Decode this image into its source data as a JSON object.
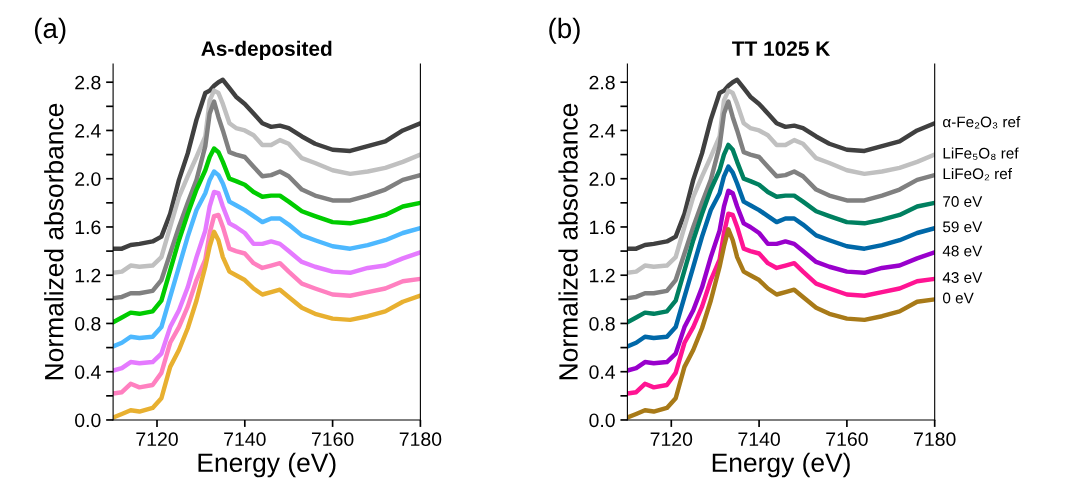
{
  "chart_data": [
    {
      "type": "line",
      "title": "As-deposited",
      "xlabel": "Energy (eV)",
      "ylabel": "Normalized absorbance",
      "annotations": [
        "(a)"
      ],
      "x": [
        7110,
        7112,
        7114,
        7116,
        7119,
        7121,
        7123,
        7125,
        7127,
        7129,
        7131,
        7132,
        7133,
        7134,
        7135,
        7136.5,
        7138,
        7140,
        7142,
        7144,
        7146,
        7148,
        7150,
        7153,
        7156,
        7160,
        7164,
        7168,
        7172,
        7176,
        7180
      ],
      "series": [
        {
          "color": "#404040",
          "values": [
            1.42,
            1.42,
            1.45,
            1.46,
            1.48,
            1.52,
            1.71,
            1.99,
            2.21,
            2.49,
            2.71,
            2.73,
            2.77,
            2.8,
            2.82,
            2.75,
            2.68,
            2.62,
            2.54,
            2.46,
            2.43,
            2.44,
            2.42,
            2.35,
            2.29,
            2.24,
            2.23,
            2.27,
            2.31,
            2.4,
            2.46
          ]
        },
        {
          "color": "#c0c0c0",
          "values": [
            1.22,
            1.23,
            1.28,
            1.27,
            1.28,
            1.35,
            1.6,
            1.85,
            2.02,
            2.18,
            2.35,
            2.65,
            2.73,
            2.71,
            2.62,
            2.46,
            2.42,
            2.4,
            2.36,
            2.28,
            2.28,
            2.32,
            2.29,
            2.17,
            2.13,
            2.07,
            2.04,
            2.06,
            2.09,
            2.14,
            2.2
          ]
        },
        {
          "color": "#808080",
          "values": [
            1.01,
            1.02,
            1.05,
            1.05,
            1.07,
            1.16,
            1.38,
            1.6,
            1.8,
            1.99,
            2.27,
            2.54,
            2.64,
            2.51,
            2.4,
            2.22,
            2.2,
            2.18,
            2.1,
            2.02,
            2.03,
            2.06,
            2.02,
            1.91,
            1.86,
            1.82,
            1.82,
            1.86,
            1.91,
            1.99,
            2.03
          ]
        },
        {
          "color": "#00cc00",
          "values": [
            0.81,
            0.85,
            0.89,
            0.88,
            0.9,
            0.99,
            1.24,
            1.49,
            1.71,
            1.91,
            2.07,
            2.18,
            2.25,
            2.22,
            2.14,
            2.0,
            1.98,
            1.95,
            1.89,
            1.85,
            1.86,
            1.86,
            1.81,
            1.73,
            1.69,
            1.64,
            1.63,
            1.66,
            1.7,
            1.77,
            1.8
          ]
        },
        {
          "color": "#4db8ff",
          "values": [
            0.61,
            0.64,
            0.69,
            0.68,
            0.69,
            0.77,
            1.02,
            1.27,
            1.52,
            1.74,
            1.88,
            1.99,
            2.06,
            2.03,
            1.96,
            1.81,
            1.78,
            1.74,
            1.69,
            1.64,
            1.67,
            1.67,
            1.62,
            1.53,
            1.49,
            1.44,
            1.42,
            1.45,
            1.49,
            1.55,
            1.59
          ]
        },
        {
          "color": "#e57aff",
          "values": [
            0.41,
            0.43,
            0.48,
            0.47,
            0.48,
            0.55,
            0.77,
            0.91,
            1.1,
            1.35,
            1.57,
            1.77,
            1.89,
            1.88,
            1.77,
            1.63,
            1.6,
            1.55,
            1.46,
            1.46,
            1.48,
            1.46,
            1.4,
            1.31,
            1.27,
            1.23,
            1.22,
            1.26,
            1.28,
            1.34,
            1.39
          ]
        },
        {
          "color": "#ff80c0",
          "values": [
            0.22,
            0.23,
            0.3,
            0.27,
            0.29,
            0.39,
            0.64,
            0.77,
            0.94,
            1.16,
            1.33,
            1.55,
            1.69,
            1.7,
            1.6,
            1.42,
            1.4,
            1.38,
            1.3,
            1.26,
            1.28,
            1.3,
            1.23,
            1.13,
            1.09,
            1.04,
            1.03,
            1.06,
            1.09,
            1.15,
            1.17
          ]
        },
        {
          "color": "#e8b030",
          "values": [
            0.02,
            0.05,
            0.08,
            0.07,
            0.1,
            0.18,
            0.44,
            0.58,
            0.76,
            0.99,
            1.27,
            1.44,
            1.56,
            1.49,
            1.35,
            1.23,
            1.2,
            1.16,
            1.09,
            1.04,
            1.06,
            1.08,
            1.02,
            0.93,
            0.88,
            0.84,
            0.83,
            0.86,
            0.9,
            0.98,
            1.03
          ]
        }
      ],
      "xlim": [
        7110,
        7180
      ],
      "ylim": [
        0,
        2.95
      ],
      "xticks": [
        7120,
        7140,
        7160,
        7180
      ],
      "yticks": [
        {
          "value": 0,
          "label": "0.0"
        },
        {
          "value": 0.2,
          "label": null
        },
        {
          "value": 0.4,
          "label": "0.4"
        },
        {
          "value": 0.6,
          "label": null
        },
        {
          "value": 0.8,
          "label": "0.8"
        },
        {
          "value": 1.0,
          "label": null
        },
        {
          "value": 1.2,
          "label": "1.2"
        },
        {
          "value": 1.4,
          "label": null
        },
        {
          "value": 1.6,
          "label": "1.6"
        },
        {
          "value": 1.8,
          "label": null
        },
        {
          "value": 2,
          "label": "2.0"
        },
        {
          "value": 2.2,
          "label": null
        },
        {
          "value": 2.4,
          "label": "2.4"
        },
        {
          "value": 2.6,
          "label": null
        },
        {
          "value": 2.8,
          "label": "2.8"
        }
      ],
      "grid": false,
      "legend": false
    },
    {
      "type": "line",
      "title": "TT 1025 K",
      "xlabel": "Energy (eV)",
      "ylabel": "Normalized absorbance",
      "annotations": [
        "(b)"
      ],
      "x": [
        7110,
        7112,
        7114,
        7116,
        7119,
        7121,
        7123,
        7125,
        7127,
        7129,
        7131,
        7132,
        7133,
        7134,
        7135,
        7136.5,
        7138,
        7140,
        7142,
        7144,
        7146,
        7148,
        7150,
        7153,
        7156,
        7160,
        7164,
        7168,
        7172,
        7176,
        7180
      ],
      "series": [
        {
          "name": "α-Fe₂O₃ ref",
          "color": "#404040",
          "values": [
            1.42,
            1.42,
            1.45,
            1.46,
            1.48,
            1.52,
            1.71,
            1.99,
            2.21,
            2.49,
            2.71,
            2.73,
            2.77,
            2.8,
            2.82,
            2.75,
            2.68,
            2.62,
            2.54,
            2.46,
            2.43,
            2.44,
            2.42,
            2.35,
            2.29,
            2.24,
            2.23,
            2.27,
            2.31,
            2.4,
            2.46
          ]
        },
        {
          "name": "LiFe₅O₈ ref",
          "color": "#c0c0c0",
          "values": [
            1.22,
            1.23,
            1.28,
            1.27,
            1.28,
            1.35,
            1.6,
            1.85,
            2.02,
            2.18,
            2.35,
            2.65,
            2.73,
            2.71,
            2.62,
            2.46,
            2.42,
            2.4,
            2.36,
            2.28,
            2.28,
            2.32,
            2.29,
            2.17,
            2.13,
            2.07,
            2.04,
            2.06,
            2.09,
            2.14,
            2.2
          ]
        },
        {
          "name": "LiFeO₂ ref",
          "color": "#808080",
          "values": [
            1.01,
            1.02,
            1.05,
            1.05,
            1.07,
            1.16,
            1.38,
            1.6,
            1.8,
            1.99,
            2.27,
            2.54,
            2.64,
            2.51,
            2.4,
            2.22,
            2.2,
            2.18,
            2.1,
            2.02,
            2.03,
            2.06,
            2.02,
            1.91,
            1.86,
            1.82,
            1.82,
            1.86,
            1.91,
            1.99,
            2.03
          ]
        },
        {
          "name": "70 eV",
          "color": "#008060",
          "values": [
            0.81,
            0.85,
            0.89,
            0.88,
            0.9,
            0.99,
            1.24,
            1.49,
            1.71,
            1.91,
            2.07,
            2.2,
            2.28,
            2.24,
            2.14,
            2.0,
            1.98,
            1.95,
            1.89,
            1.85,
            1.86,
            1.86,
            1.81,
            1.73,
            1.69,
            1.64,
            1.63,
            1.66,
            1.7,
            1.77,
            1.8
          ]
        },
        {
          "name": "59 eV",
          "color": "#0068a8",
          "values": [
            0.61,
            0.64,
            0.69,
            0.68,
            0.69,
            0.77,
            1.02,
            1.27,
            1.52,
            1.74,
            1.88,
            2.02,
            2.1,
            2.05,
            1.96,
            1.81,
            1.78,
            1.74,
            1.69,
            1.64,
            1.67,
            1.67,
            1.62,
            1.53,
            1.49,
            1.44,
            1.42,
            1.45,
            1.49,
            1.55,
            1.59
          ]
        },
        {
          "name": "48 eV",
          "color": "#9900cc",
          "values": [
            0.41,
            0.43,
            0.48,
            0.47,
            0.48,
            0.55,
            0.77,
            0.91,
            1.1,
            1.35,
            1.57,
            1.77,
            1.9,
            1.88,
            1.77,
            1.63,
            1.6,
            1.55,
            1.46,
            1.46,
            1.48,
            1.46,
            1.4,
            1.31,
            1.27,
            1.23,
            1.22,
            1.26,
            1.28,
            1.34,
            1.39
          ]
        },
        {
          "name": "43 eV",
          "color": "#ff1493",
          "values": [
            0.22,
            0.23,
            0.3,
            0.27,
            0.29,
            0.39,
            0.64,
            0.77,
            0.94,
            1.16,
            1.33,
            1.55,
            1.71,
            1.7,
            1.6,
            1.42,
            1.4,
            1.38,
            1.3,
            1.26,
            1.28,
            1.3,
            1.23,
            1.13,
            1.09,
            1.04,
            1.03,
            1.06,
            1.09,
            1.15,
            1.17
          ]
        },
        {
          "name": "0 eV",
          "color": "#a87a18",
          "values": [
            0.02,
            0.05,
            0.08,
            0.07,
            0.1,
            0.18,
            0.44,
            0.58,
            0.76,
            0.99,
            1.27,
            1.44,
            1.58,
            1.49,
            1.35,
            1.23,
            1.2,
            1.16,
            1.09,
            1.04,
            1.06,
            1.08,
            1.02,
            0.93,
            0.88,
            0.84,
            0.83,
            0.86,
            0.9,
            0.98,
            1.0
          ]
        }
      ],
      "xlim": [
        7110,
        7180
      ],
      "ylim": [
        0,
        2.95
      ],
      "xticks": [
        7120,
        7140,
        7160,
        7180
      ],
      "yticks": [
        {
          "value": 0,
          "label": "0.0"
        },
        {
          "value": 0.2,
          "label": null
        },
        {
          "value": 0.4,
          "label": "0.4"
        },
        {
          "value": 0.6,
          "label": null
        },
        {
          "value": 0.8,
          "label": "0.8"
        },
        {
          "value": 1.0,
          "label": null
        },
        {
          "value": 1.2,
          "label": "1.2"
        },
        {
          "value": 1.4,
          "label": null
        },
        {
          "value": 1.6,
          "label": "1.6"
        },
        {
          "value": 1.8,
          "label": null
        },
        {
          "value": 2,
          "label": "2.0"
        },
        {
          "value": 2.2,
          "label": null
        },
        {
          "value": 2.4,
          "label": "2.4"
        },
        {
          "value": 2.6,
          "label": null
        },
        {
          "value": 2.8,
          "label": "2.8"
        }
      ],
      "grid": false,
      "legend": false
    }
  ]
}
